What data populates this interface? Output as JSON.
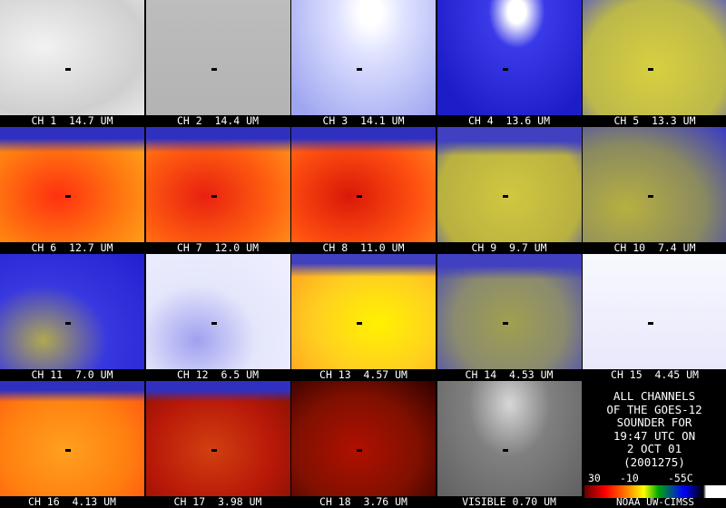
{
  "panels": [
    {
      "label": "CH 1  14.7 UM"
    },
    {
      "label": "CH 2  14.4 UM"
    },
    {
      "label": "CH 3  14.1 UM"
    },
    {
      "label": "CH 4  13.6 UM"
    },
    {
      "label": "CH 5  13.3 UM"
    },
    {
      "label": "CH 6  12.7 UM"
    },
    {
      "label": "CH 7  12.0 UM"
    },
    {
      "label": "CH 8  11.0 UM"
    },
    {
      "label": "CH 9  9.7 UM"
    },
    {
      "label": "CH 10  7.4 UM"
    },
    {
      "label": "CH 11  7.0 UM"
    },
    {
      "label": "CH 12  6.5 UM"
    },
    {
      "label": "CH 13  4.57 UM"
    },
    {
      "label": "CH 14  4.53 UM"
    },
    {
      "label": "CH 15  4.45 UM"
    },
    {
      "label": "CH 16  4.13 UM"
    },
    {
      "label": "CH 17  3.98 UM"
    },
    {
      "label": "CH 18  3.76 UM"
    },
    {
      "label": "VISIBLE 0.70 UM"
    }
  ],
  "info": [
    "ALL CHANNELS",
    "OF THE GOES-12",
    "SOUNDER FOR",
    "19:47 UTC ON",
    "2 OCT 01",
    "(2001275)"
  ],
  "colorbar_labels": [
    "30",
    "-10",
    "-55C"
  ],
  "credit": "NOAA UW-CIMSS"
}
